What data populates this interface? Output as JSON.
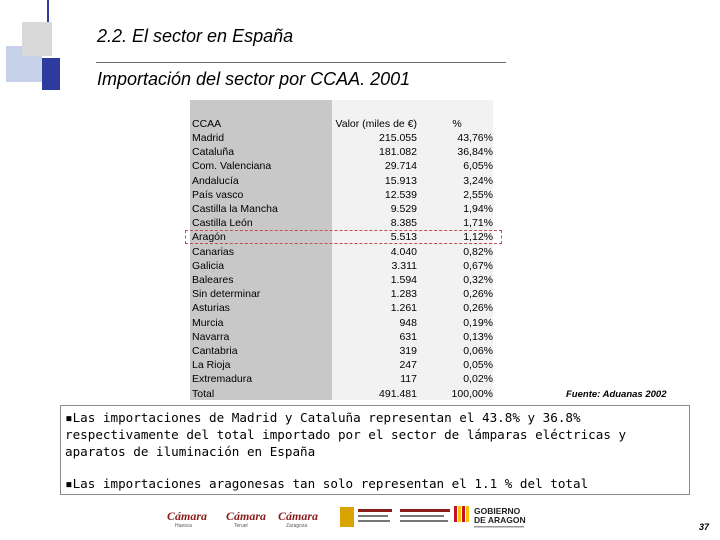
{
  "header": {
    "title": "2.2. El sector en España",
    "subtitle": "Importación del sector por CCAA. 2001"
  },
  "table": {
    "columns": [
      "CCAA",
      "Valor (miles de €)",
      "%"
    ],
    "rows": [
      {
        "ccaa": "Madrid",
        "valor": "215.055",
        "pct": "43,76%"
      },
      {
        "ccaa": "Cataluña",
        "valor": "181.082",
        "pct": "36,84%"
      },
      {
        "ccaa": "Com. Valenciana",
        "valor": "29.714",
        "pct": "6,05%"
      },
      {
        "ccaa": "Andalucía",
        "valor": "15.913",
        "pct": "3,24%"
      },
      {
        "ccaa": "País vasco",
        "valor": "12.539",
        "pct": "2,55%"
      },
      {
        "ccaa": "Castilla la Mancha",
        "valor": "9.529",
        "pct": "1,94%"
      },
      {
        "ccaa": "Castilla León",
        "valor": "8.385",
        "pct": "1,71%"
      },
      {
        "ccaa": "Aragón",
        "valor": "5.513",
        "pct": "1,12%"
      },
      {
        "ccaa": "Canarias",
        "valor": "4.040",
        "pct": "0,82%"
      },
      {
        "ccaa": "Galicia",
        "valor": "3.311",
        "pct": "0,67%"
      },
      {
        "ccaa": "Baleares",
        "valor": "1.594",
        "pct": "0,32%"
      },
      {
        "ccaa": "Sin determinar",
        "valor": "1.283",
        "pct": "0,26%"
      },
      {
        "ccaa": "Asturias",
        "valor": "1.261",
        "pct": "0,26%"
      },
      {
        "ccaa": "Murcia",
        "valor": "948",
        "pct": "0,19%"
      },
      {
        "ccaa": "Navarra",
        "valor": "631",
        "pct": "0,13%"
      },
      {
        "ccaa": "Cantabria",
        "valor": "319",
        "pct": "0,06%"
      },
      {
        "ccaa": "La Rioja",
        "valor": "247",
        "pct": "0,05%"
      },
      {
        "ccaa": "Extremadura",
        "valor": "117",
        "pct": "0,02%"
      },
      {
        "ccaa": "Total",
        "valor": "491.481",
        "pct": "100,00%"
      }
    ],
    "highlighted_row": "Aragón",
    "highlight_color": "#c0504d"
  },
  "source": "Fuente: Aduanas 2002",
  "bullets": [
    "▪Las importaciones de Madrid y Cataluña representan el 43.8% y 36.8% respectivamente del total importado por el sector de lámparas eléctricas y aparatos de iluminación en España",
    "▪Las importaciones aragonesas tan solo representan el 1.1 % del total"
  ],
  "logos": [
    "Cámara Huesca",
    "Cámara Teruel",
    "Cámara Zaragoza",
    "Gobierno de España",
    "Gobierno de Aragón"
  ],
  "page_number": "37",
  "colors": {
    "deco_blue": "#2f3a9e",
    "deco_light": "#c7d2ea",
    "table_col_bg": "#c8c8c8",
    "table_bg": "#f2f2f2"
  }
}
